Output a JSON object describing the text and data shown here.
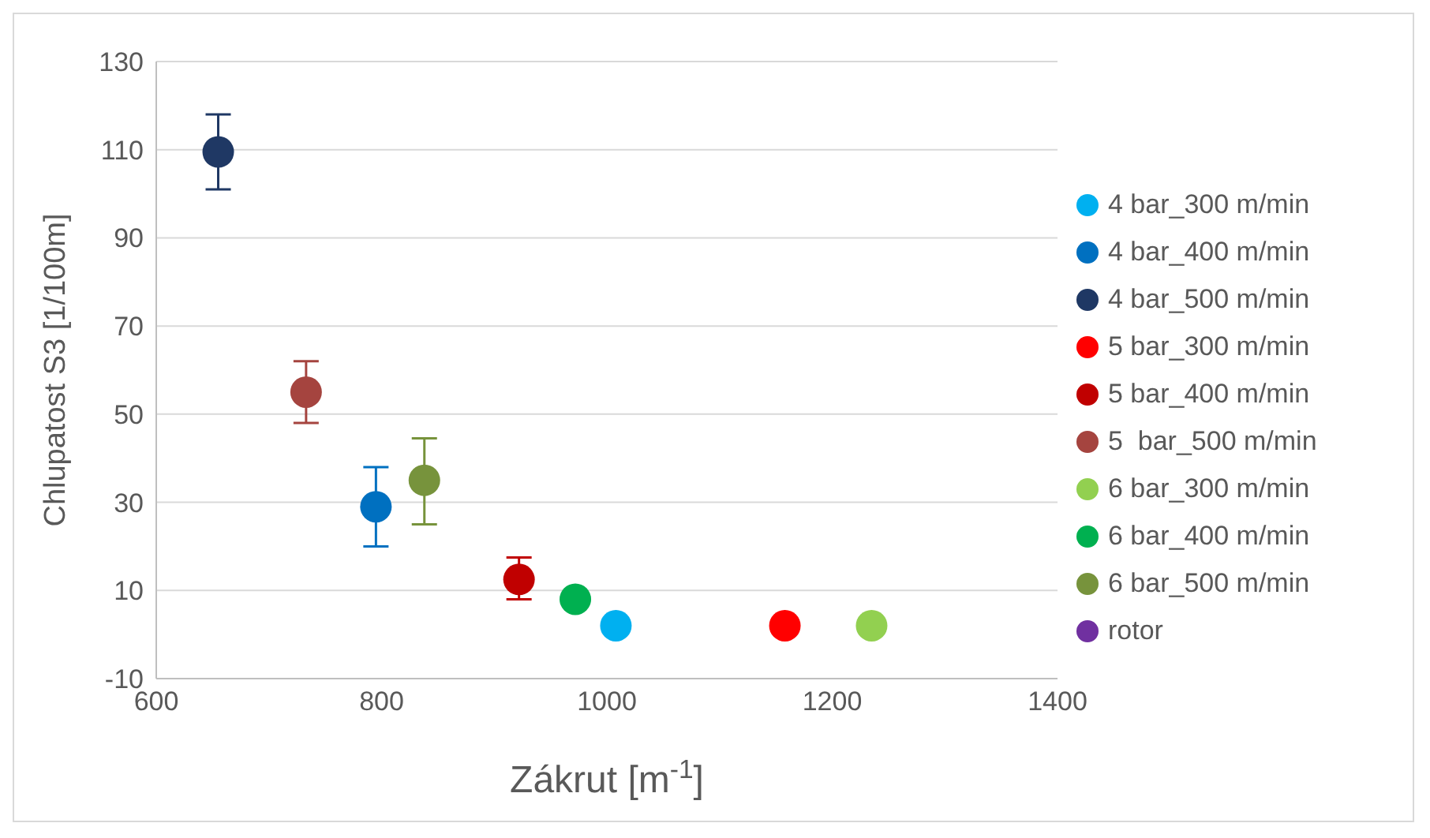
{
  "chart_data": {
    "type": "scatter",
    "xlabel": "Zákrut [m$^{-1}$]",
    "ylabel": "Chlupatost S3 [1/100m]",
    "xlim": [
      600,
      1400
    ],
    "xticks": [
      600,
      800,
      1000,
      1200,
      1400
    ],
    "ylim": [
      -10,
      130
    ],
    "yticks": [
      -10,
      10,
      30,
      50,
      70,
      90,
      110,
      130
    ],
    "grid": "y",
    "legend": "right",
    "marker": "circle",
    "series": [
      {
        "name": "4 bar_300 m/min",
        "color": "#00b0f0",
        "x": [
          1008
        ],
        "values": [
          2
        ]
      },
      {
        "name": "4 bar_400 m/min",
        "color": "#0070c0",
        "x": [
          795
        ],
        "values": [
          29
        ],
        "errors": [
          [
            20,
            38
          ]
        ]
      },
      {
        "name": "4 bar_500 m/min",
        "color": "#1f3864",
        "x": [
          655
        ],
        "values": [
          109.5
        ],
        "errors": [
          [
            101,
            118
          ]
        ]
      },
      {
        "name": "5 bar_300 m/min",
        "color": "#ff0000",
        "x": [
          1158
        ],
        "values": [
          2
        ]
      },
      {
        "name": "5 bar_400 m/min",
        "color": "#c00000",
        "x": [
          922
        ],
        "values": [
          12.5
        ],
        "errors": [
          [
            8,
            17.5
          ]
        ]
      },
      {
        "name": "5  bar_500 m/min",
        "color": "#a5443f",
        "x": [
          733
        ],
        "values": [
          55
        ],
        "errors": [
          [
            48,
            62
          ]
        ]
      },
      {
        "name": "6 bar_300 m/min",
        "color": "#92d050",
        "x": [
          1235
        ],
        "values": [
          2
        ]
      },
      {
        "name": "6 bar_400 m/min",
        "color": "#00b050",
        "x": [
          972
        ],
        "values": [
          8
        ]
      },
      {
        "name": "6 bar_500 m/min",
        "color": "#77933c",
        "x": [
          838
        ],
        "values": [
          35
        ],
        "errors": [
          [
            25,
            44.5
          ]
        ]
      },
      {
        "name": "rotor",
        "color": "#7030a0"
      }
    ]
  }
}
